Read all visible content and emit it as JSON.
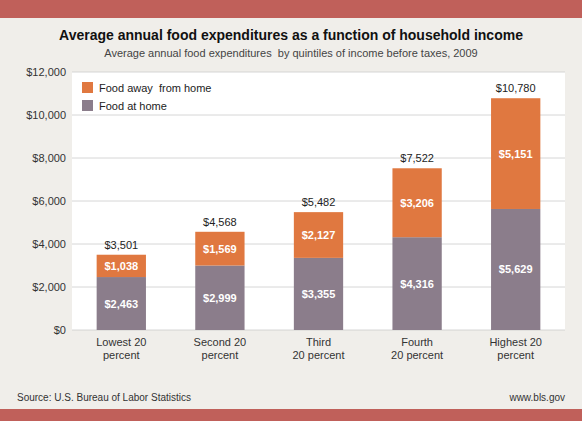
{
  "chart_data": {
    "type": "bar",
    "stacked": true,
    "title": "Average annual food expenditures as a function of household income",
    "subtitle": "Average annual food expenditures  by quintiles of income before taxes, 2009",
    "source_left": "Source: U.S. Bureau of Labor Statistics",
    "source_right": "www.bls.gov",
    "categories": [
      "Lowest 20\npercent",
      "Second 20\npercent",
      "Third\n20 percent",
      "Fourth\n20 percent",
      "Highest 20\npercent"
    ],
    "series": [
      {
        "name": "Food at home",
        "color": "#8b7d8b",
        "values": [
          2463,
          2999,
          3355,
          4316,
          5629
        ],
        "value_labels": [
          "$2,463",
          "$2,999",
          "$3,355",
          "$4,316",
          "$5,629"
        ]
      },
      {
        "name": "Food away  from home",
        "color": "#e07840",
        "values": [
          1038,
          1569,
          2127,
          3206,
          5151
        ],
        "value_labels": [
          "$1,038",
          "$1,569",
          "$2,127",
          "$3,206",
          "$5,151"
        ]
      }
    ],
    "totals": [
      3501,
      4568,
      5482,
      7522,
      10780
    ],
    "total_labels": [
      "$3,501",
      "$4,568",
      "$5,482",
      "$7,522",
      "$10,780"
    ],
    "ylim": [
      0,
      12000
    ],
    "yticks": [
      {
        "value": 0,
        "label": "$0"
      },
      {
        "value": 2000,
        "label": "$2,000"
      },
      {
        "value": 4000,
        "label": "$4,000"
      },
      {
        "value": 6000,
        "label": "$6,000"
      },
      {
        "value": 8000,
        "label": "$8,000"
      },
      {
        "value": 10000,
        "label": "$10,000"
      },
      {
        "value": 12000,
        "label": "$12,000"
      }
    ],
    "grid": true,
    "legend": "upper left",
    "data_labels": true
  }
}
